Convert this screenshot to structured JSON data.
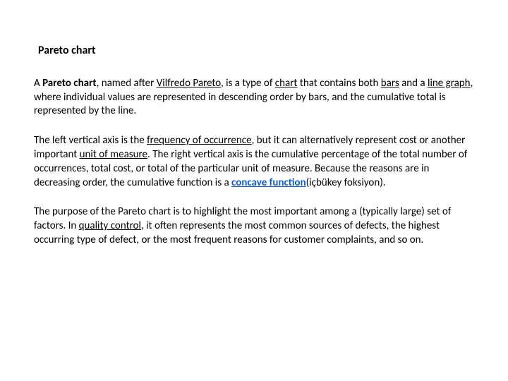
{
  "title": "Pareto chart",
  "para1": {
    "lead": "A ",
    "term": "Pareto chart",
    "afterTerm": ", named after ",
    "vilfredo": "Vilfredo Pareto",
    "afterVilfredo": ", is a type of ",
    "chart": "chart",
    "afterChart": " that contains both ",
    "bars": "bars",
    "afterBars": " and a ",
    "lineGraph": "line graph",
    "tail": ", where individual values are represented in descending order by bars, and the cumulative total is represented by the line."
  },
  "para2": {
    "a": "The left vertical axis is the ",
    "freq": "frequency of occurrence",
    "b": ", but it can alternatively represent cost or another important ",
    "uom": "unit of measure",
    "c": ". The right vertical axis is the cumulative percentage of the total number of occurrences, total cost, or total of the particular unit of measure. Because the reasons are in decreasing order, the cumulative function is a ",
    "concave": "concave function",
    "d": "(içbükey foksiyon)."
  },
  "para3": {
    "a": "The purpose of the Pareto chart is to highlight the most important among a (typically large) set of factors. In ",
    "qc": "quality control",
    "b": ", it often represents the most common sources of defects, the highest occurring type of defect, or the most frequent reasons for customer complaints, and so on."
  }
}
